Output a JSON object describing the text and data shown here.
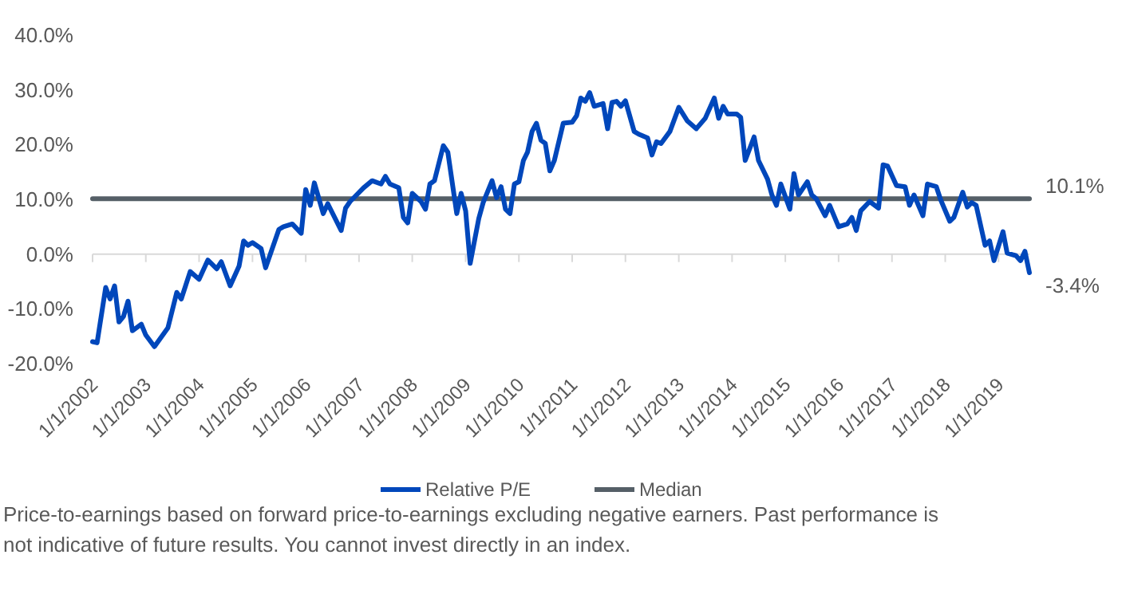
{
  "chart_data": {
    "type": "line",
    "xlim": [
      "2002-01",
      "2019-08"
    ],
    "ylim": [
      -20,
      40
    ],
    "xticks": [
      {
        "value": "2002-01",
        "label": "1/1/2002"
      },
      {
        "value": "2003-01",
        "label": "1/1/2003"
      },
      {
        "value": "2004-01",
        "label": "1/1/2004"
      },
      {
        "value": "2005-01",
        "label": "1/1/2005"
      },
      {
        "value": "2006-01",
        "label": "1/1/2006"
      },
      {
        "value": "2007-01",
        "label": "1/1/2007"
      },
      {
        "value": "2008-01",
        "label": "1/1/2008"
      },
      {
        "value": "2009-01",
        "label": "1/1/2009"
      },
      {
        "value": "2010-01",
        "label": "1/1/2010"
      },
      {
        "value": "2011-01",
        "label": "1/1/2011"
      },
      {
        "value": "2012-01",
        "label": "1/1/2012"
      },
      {
        "value": "2013-01",
        "label": "1/1/2013"
      },
      {
        "value": "2014-01",
        "label": "1/1/2014"
      },
      {
        "value": "2015-01",
        "label": "1/1/2015"
      },
      {
        "value": "2016-01",
        "label": "1/1/2016"
      },
      {
        "value": "2017-01",
        "label": "1/1/2017"
      },
      {
        "value": "2018-01",
        "label": "1/1/2018"
      },
      {
        "value": "2019-01",
        "label": "1/1/2019"
      }
    ],
    "yticks": [
      {
        "value": -20,
        "label": "-20.0%"
      },
      {
        "value": -10,
        "label": "-10.0%"
      },
      {
        "value": 0,
        "label": "0.0%"
      },
      {
        "value": 10,
        "label": "10.0%"
      },
      {
        "value": 20,
        "label": "20.0%"
      },
      {
        "value": 30,
        "label": "30.0%"
      },
      {
        "value": 40,
        "label": "40.0%"
      }
    ],
    "legend": "bottom",
    "series": [
      {
        "name": "Relative P/E",
        "color": "#0047bb",
        "x": [
          "2002-01",
          "2002-02",
          "2002-04",
          "2002-05",
          "2002-06",
          "2002-07",
          "2002-08",
          "2002-09",
          "2002-10",
          "2002-12",
          "2003-01",
          "2003-03",
          "2003-06",
          "2003-08",
          "2003-09",
          "2003-11",
          "2004-01",
          "2004-03",
          "2004-05",
          "2004-06",
          "2004-08",
          "2004-10",
          "2004-11",
          "2004-12",
          "2005-01",
          "2005-03",
          "2005-04",
          "2005-07",
          "2005-08",
          "2005-10",
          "2005-12",
          "2006-01",
          "2006-02",
          "2006-03",
          "2006-05",
          "2006-06",
          "2006-09",
          "2006-10",
          "2006-11",
          "2007-02",
          "2007-04",
          "2007-06",
          "2007-07",
          "2007-08",
          "2007-10",
          "2007-11",
          "2007-12",
          "2008-01",
          "2008-03",
          "2008-04",
          "2008-05",
          "2008-06",
          "2008-08",
          "2008-09",
          "2008-11",
          "2008-12",
          "2009-01",
          "2009-02",
          "2009-04",
          "2009-05",
          "2009-07",
          "2009-08",
          "2009-09",
          "2009-10",
          "2009-11",
          "2009-12",
          "2010-01",
          "2010-02",
          "2010-03",
          "2010-04",
          "2010-05",
          "2010-06",
          "2010-07",
          "2010-08",
          "2010-09",
          "2010-11",
          "2011-01",
          "2011-02",
          "2011-03",
          "2011-04",
          "2011-05",
          "2011-06",
          "2011-08",
          "2011-09",
          "2011-10",
          "2011-11",
          "2011-12",
          "2012-01",
          "2012-03",
          "2012-04",
          "2012-06",
          "2012-07",
          "2012-08",
          "2012-09",
          "2012-11",
          "2013-01",
          "2013-03",
          "2013-05",
          "2013-07",
          "2013-09",
          "2013-10",
          "2013-11",
          "2013-12",
          "2014-02",
          "2014-03",
          "2014-04",
          "2014-06",
          "2014-07",
          "2014-09",
          "2014-10",
          "2014-11",
          "2014-12",
          "2015-02",
          "2015-03",
          "2015-04",
          "2015-06",
          "2015-07",
          "2015-08",
          "2015-10",
          "2015-11",
          "2016-01",
          "2016-03",
          "2016-04",
          "2016-05",
          "2016-06",
          "2016-08",
          "2016-10",
          "2016-11",
          "2016-12",
          "2017-02",
          "2017-04",
          "2017-05",
          "2017-06",
          "2017-08",
          "2017-09",
          "2017-11",
          "2017-12",
          "2018-02",
          "2018-03",
          "2018-05",
          "2018-06",
          "2018-07",
          "2018-08",
          "2018-10",
          "2018-11",
          "2018-12",
          "2019-02",
          "2019-03",
          "2019-05",
          "2019-06",
          "2019-07",
          "2019-08"
        ],
        "values": [
          -16.0,
          -16.2,
          -6.1,
          -8.2,
          -5.8,
          -12.4,
          -11.4,
          -8.6,
          -14.0,
          -12.8,
          -14.8,
          -16.9,
          -13.5,
          -7.0,
          -8.2,
          -3.2,
          -4.6,
          -1.1,
          -2.7,
          -1.4,
          -5.8,
          -2.2,
          2.4,
          1.6,
          2.1,
          1.0,
          -2.5,
          4.5,
          5.0,
          5.5,
          3.8,
          11.8,
          8.9,
          13.0,
          7.4,
          9.2,
          4.3,
          8.4,
          9.6,
          12.1,
          13.4,
          12.8,
          14.2,
          12.8,
          12.1,
          6.7,
          5.7,
          11.1,
          9.6,
          8.2,
          12.8,
          13.4,
          19.8,
          18.6,
          7.4,
          11.1,
          7.9,
          -1.7,
          6.5,
          9.4,
          13.4,
          10.3,
          12.3,
          8.2,
          7.4,
          12.8,
          13.2,
          17.1,
          18.6,
          22.4,
          23.9,
          20.8,
          20.2,
          15.2,
          17.1,
          23.9,
          24.1,
          25.3,
          28.5,
          27.9,
          29.5,
          27.0,
          27.5,
          22.9,
          27.7,
          27.9,
          27.0,
          28.0,
          22.4,
          21.9,
          21.2,
          18.1,
          20.5,
          20.2,
          22.4,
          26.8,
          24.3,
          22.9,
          24.8,
          28.5,
          24.8,
          27.0,
          25.6,
          25.6,
          25.0,
          17.1,
          21.4,
          17.1,
          13.7,
          10.8,
          8.9,
          12.8,
          8.2,
          14.7,
          10.8,
          13.2,
          10.8,
          10.1,
          7.0,
          8.9,
          5.0,
          5.5,
          6.7,
          4.3,
          7.9,
          9.6,
          8.4,
          16.3,
          16.1,
          12.5,
          12.3,
          8.9,
          10.8,
          7.0,
          12.8,
          12.3,
          9.9,
          6.0,
          6.7,
          11.3,
          8.6,
          9.4,
          8.9,
          1.6,
          2.4,
          -1.2,
          4.1,
          0.2,
          -0.3,
          -1.2,
          0.5,
          -3.4
        ]
      },
      {
        "name": "Median",
        "color": "#555f67",
        "x": [
          "2002-01",
          "2019-08"
        ],
        "values": [
          10.1,
          10.1
        ]
      }
    ],
    "annotations": [
      {
        "text": "10.1%",
        "x": "2019-08",
        "y": 10.1
      },
      {
        "text": "-3.4%",
        "x": "2019-08",
        "y": -3.4
      },
      "Price-to-earnings based on forward price-to-earnings excluding negative earners. Past performance is not indicative of future results. You cannot invest directly in an index."
    ]
  }
}
